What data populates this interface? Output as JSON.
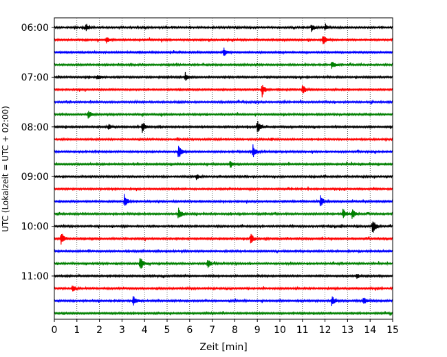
{
  "chart_data": {
    "type": "line",
    "xlabel": "Zeit  [min]",
    "ylabel": "UTC (Lokalzeit = UTC + 02:00)",
    "xlim": [
      0,
      15
    ],
    "x_ticks": [
      0,
      1,
      2,
      3,
      4,
      5,
      6,
      7,
      8,
      9,
      10,
      11,
      12,
      13,
      14,
      15
    ],
    "y_tick_labels": [
      "06:00",
      "07:00",
      "08:00",
      "09:00",
      "10:00",
      "11:00"
    ],
    "grid": "vertical dotted",
    "colors": [
      "#000000",
      "#ff0000",
      "#0000ff",
      "#008000"
    ],
    "rows_per_hour": 4,
    "minutes_per_row": 15,
    "start_time": "06:00",
    "traces": [
      {
        "time": "06:00",
        "color": "#000000",
        "events": [
          {
            "t": 1.4,
            "a": 6
          },
          {
            "t": 11.4,
            "a": 6
          },
          {
            "t": 12.0,
            "a": 4
          }
        ]
      },
      {
        "time": "06:15",
        "color": "#ff0000",
        "events": [
          {
            "t": 2.3,
            "a": 5
          },
          {
            "t": 11.9,
            "a": 10
          }
        ]
      },
      {
        "time": "06:30",
        "color": "#0000ff",
        "events": [
          {
            "t": 7.5,
            "a": 7
          }
        ]
      },
      {
        "time": "06:45",
        "color": "#008000",
        "events": [
          {
            "t": 12.3,
            "a": 6
          }
        ]
      },
      {
        "time": "07:00",
        "color": "#000000",
        "events": [
          {
            "t": 1.9,
            "a": 4
          },
          {
            "t": 5.8,
            "a": 7
          }
        ]
      },
      {
        "time": "07:15",
        "color": "#ff0000",
        "events": [
          {
            "t": 9.2,
            "a": 10
          },
          {
            "t": 11.0,
            "a": 8
          }
        ]
      },
      {
        "time": "07:30",
        "color": "#0000ff",
        "events": []
      },
      {
        "time": "07:45",
        "color": "#008000",
        "events": [
          {
            "t": 1.5,
            "a": 7
          }
        ]
      },
      {
        "time": "08:00",
        "color": "#000000",
        "events": [
          {
            "t": 3.9,
            "a": 8
          },
          {
            "t": 9.0,
            "a": 10
          },
          {
            "t": 2.4,
            "a": 4
          }
        ]
      },
      {
        "time": "08:15",
        "color": "#ff0000",
        "events": []
      },
      {
        "time": "08:30",
        "color": "#0000ff",
        "events": [
          {
            "t": 5.5,
            "a": 11
          },
          {
            "t": 8.8,
            "a": 11
          }
        ]
      },
      {
        "time": "08:45",
        "color": "#008000",
        "events": [
          {
            "t": 7.8,
            "a": 6
          }
        ]
      },
      {
        "time": "09:00",
        "color": "#000000",
        "events": [
          {
            "t": 6.3,
            "a": 4
          }
        ]
      },
      {
        "time": "09:15",
        "color": "#ff0000",
        "events": []
      },
      {
        "time": "09:30",
        "color": "#0000ff",
        "events": [
          {
            "t": 3.1,
            "a": 11
          },
          {
            "t": 11.8,
            "a": 9
          }
        ]
      },
      {
        "time": "09:45",
        "color": "#008000",
        "events": [
          {
            "t": 5.5,
            "a": 10
          },
          {
            "t": 12.8,
            "a": 8
          },
          {
            "t": 13.2,
            "a": 8
          }
        ]
      },
      {
        "time": "10:00",
        "color": "#000000",
        "events": [
          {
            "t": 14.1,
            "a": 12
          }
        ]
      },
      {
        "time": "10:15",
        "color": "#ff0000",
        "events": [
          {
            "t": 0.3,
            "a": 9
          },
          {
            "t": 8.7,
            "a": 9
          }
        ]
      },
      {
        "time": "10:30",
        "color": "#0000ff",
        "events": []
      },
      {
        "time": "10:45",
        "color": "#008000",
        "events": [
          {
            "t": 3.8,
            "a": 12
          },
          {
            "t": 6.8,
            "a": 7
          }
        ]
      },
      {
        "time": "11:00",
        "color": "#000000",
        "events": [
          {
            "t": 13.4,
            "a": 4
          }
        ]
      },
      {
        "time": "11:15",
        "color": "#ff0000",
        "events": [
          {
            "t": 0.8,
            "a": 5
          }
        ]
      },
      {
        "time": "11:30",
        "color": "#0000ff",
        "events": [
          {
            "t": 3.5,
            "a": 8
          },
          {
            "t": 12.3,
            "a": 7
          },
          {
            "t": 13.7,
            "a": 7
          }
        ]
      },
      {
        "time": "11:45",
        "color": "#008000",
        "events": []
      }
    ]
  }
}
